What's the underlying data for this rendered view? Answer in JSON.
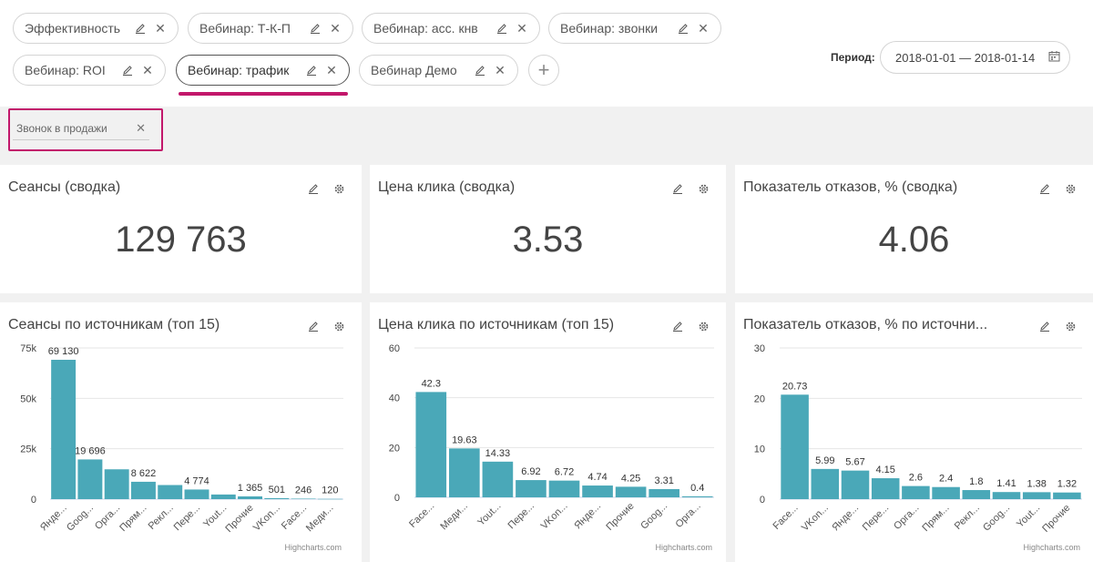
{
  "tabs": [
    {
      "label": "Эффективность"
    },
    {
      "label": "Вебинар: Т-К-П"
    },
    {
      "label": "Вебинар: асс. кнв"
    },
    {
      "label": "Вебинар: звонки"
    },
    {
      "label": "Вебинар: ROI"
    },
    {
      "label": "Вебинар: трафик",
      "active": true
    },
    {
      "label": "Вебинар Демо"
    }
  ],
  "add_tab": "+",
  "period": {
    "label": "Период:",
    "value": "2018-01-01 — 2018-01-14"
  },
  "filter": {
    "label": "Звонок в продажи"
  },
  "summary": [
    {
      "title": "Сеансы (сводка)",
      "value": "129 763"
    },
    {
      "title": "Цена клика (сводка)",
      "value": "3.53"
    },
    {
      "title": "Показатель отказов, % (сводка)",
      "value": "4.06"
    }
  ],
  "charts": [
    {
      "title": "Сеансы по источникам (топ 15)"
    },
    {
      "title": "Цена клика по источникам (топ 15)"
    },
    {
      "title": "Показатель отказов, % по источни..."
    }
  ],
  "chart_data": [
    {
      "type": "bar",
      "title": "Сеансы по источникам (топ 15)",
      "categories": [
        "Янде...",
        "Goog...",
        "Орга...",
        "Прям...",
        "Рекл...",
        "Пере...",
        "Yout...",
        "Прочие",
        "VKon...",
        "Face...",
        "Меди..."
      ],
      "values": [
        69130,
        19696,
        14800,
        8622,
        7000,
        4774,
        2300,
        1365,
        501,
        246,
        120
      ],
      "labels": [
        "69 130",
        "19 696",
        "",
        "8 622",
        "",
        "4 774",
        "",
        "1 365",
        "501",
        "246",
        "120"
      ],
      "yticks": [
        "0",
        "25k",
        "50k",
        "75k"
      ],
      "ylim": [
        0,
        75000
      ],
      "credit": "Highcharts.com"
    },
    {
      "type": "bar",
      "title": "Цена клика по источникам (топ 15)",
      "categories": [
        "Face...",
        "Меди...",
        "Yout...",
        "Пере...",
        "VKon...",
        "Янде...",
        "Прочие",
        "Goog...",
        "Орга..."
      ],
      "values": [
        42.3,
        19.63,
        14.33,
        6.92,
        6.72,
        4.74,
        4.25,
        3.31,
        0.4
      ],
      "labels": [
        "42.3",
        "19.63",
        "14.33",
        "6.92",
        "6.72",
        "4.74",
        "4.25",
        "3.31",
        "0.4"
      ],
      "yticks": [
        "0",
        "20",
        "40",
        "60"
      ],
      "ylim": [
        0,
        60
      ],
      "credit": "Highcharts.com"
    },
    {
      "type": "bar",
      "title": "Показатель отказов, % по источни...",
      "categories": [
        "Face...",
        "VKon...",
        "Янде...",
        "Пере...",
        "Орга...",
        "Прям...",
        "Рекл...",
        "Goog...",
        "Yout...",
        "Прочие"
      ],
      "values": [
        20.73,
        5.99,
        5.67,
        4.15,
        2.6,
        2.4,
        1.8,
        1.41,
        1.38,
        1.32
      ],
      "labels": [
        "20.73",
        "5.99",
        "5.67",
        "4.15",
        "2.6",
        "2.4",
        "1.8",
        "1.41",
        "1.38",
        "1.32"
      ],
      "yticks": [
        "0",
        "10",
        "20",
        "30"
      ],
      "ylim": [
        0,
        30
      ],
      "credit": "Highcharts.com"
    }
  ],
  "colors": {
    "bar": "#4aa8b8",
    "accent": "#c2176b"
  }
}
